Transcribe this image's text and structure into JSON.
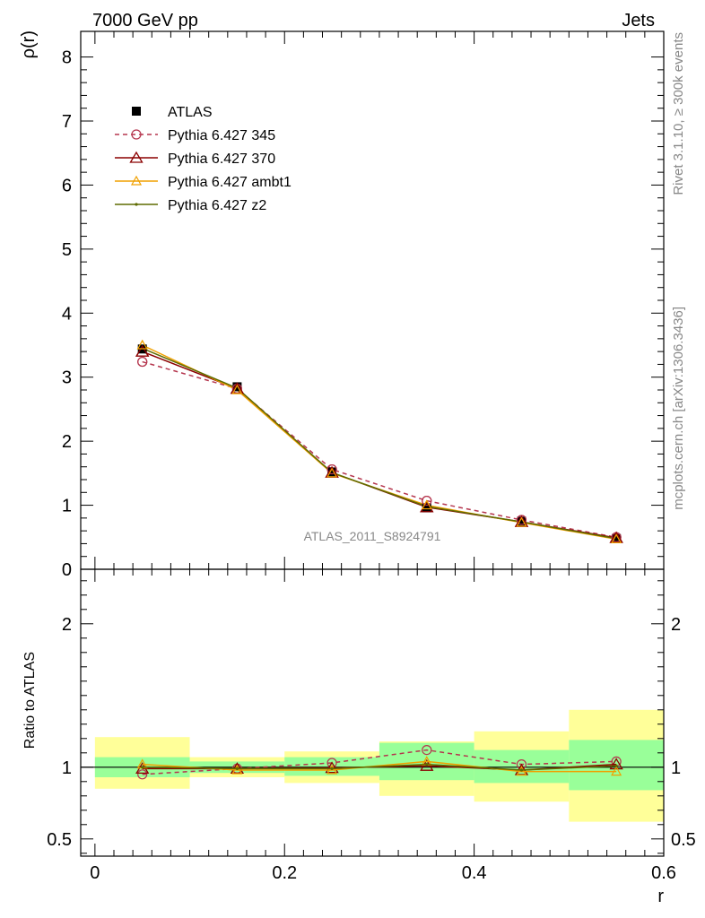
{
  "header": {
    "energy_label": "7000 GeV pp",
    "process_label": "Jets"
  },
  "side_labels": {
    "rivet": "Rivet 3.1.10, ≥ 300k events",
    "source": "mcplots.cern.ch [arXiv:1306.3436]"
  },
  "chart_data": {
    "type": "line",
    "analysis_label": "ATLAS_2011_S8924791",
    "xlabel": "r",
    "xlim": [
      -0.015,
      0.6
    ],
    "x_ticks": [
      {
        "value": 0,
        "label": "0"
      },
      {
        "value": 0.2,
        "label": "0.2"
      },
      {
        "value": 0.4,
        "label": "0.4"
      },
      {
        "value": 0.6,
        "label": "0.6"
      }
    ],
    "bin_edges": [
      0,
      0.1,
      0.2,
      0.3,
      0.4,
      0.5,
      0.6
    ],
    "x": [
      0.05,
      0.15,
      0.25,
      0.35,
      0.45,
      0.55
    ],
    "main": {
      "ylabel": "ρ(r)",
      "ylim": [
        0,
        8.4
      ],
      "y_ticks": [
        {
          "value": 0,
          "label": "0"
        },
        {
          "value": 1,
          "label": "1"
        },
        {
          "value": 2,
          "label": "2"
        },
        {
          "value": 3,
          "label": "3"
        },
        {
          "value": 4,
          "label": "4"
        },
        {
          "value": 5,
          "label": "5"
        },
        {
          "value": 6,
          "label": "6"
        },
        {
          "value": 7,
          "label": "7"
        },
        {
          "value": 8,
          "label": "8"
        }
      ],
      "data": {
        "name": "ATLAS",
        "values": [
          3.44,
          2.85,
          1.52,
          0.96,
          0.75,
          0.48
        ],
        "errors": [
          0.05,
          0.04,
          0.03,
          0.02,
          0.02,
          0.02
        ]
      },
      "series": [
        {
          "name": "Pythia 6.427 345",
          "color": "#b5364e",
          "dash": "5,4",
          "marker": "circle",
          "values": [
            3.24,
            2.82,
            1.56,
            1.07,
            0.77,
            0.5
          ]
        },
        {
          "name": "Pythia 6.427 370",
          "color": "#8b0000",
          "dash": "",
          "marker": "triangle-large",
          "values": [
            3.4,
            2.82,
            1.51,
            0.97,
            0.74,
            0.49
          ]
        },
        {
          "name": "Pythia 6.427 ambt1",
          "color": "#f0a000",
          "dash": "",
          "marker": "triangle",
          "values": [
            3.5,
            2.8,
            1.5,
            1.0,
            0.73,
            0.47
          ]
        },
        {
          "name": "Pythia 6.427 z2",
          "color": "#5e6b00",
          "dash": "",
          "marker": "dot",
          "values": [
            3.45,
            2.83,
            1.51,
            0.98,
            0.74,
            0.48
          ]
        }
      ]
    },
    "ratio": {
      "ylabel": "Ratio to ATLAS",
      "ylim": [
        0.38,
        2.38
      ],
      "y_ticks": [
        {
          "value": 0.5,
          "label": "0.5"
        },
        {
          "value": 1,
          "label": "1"
        },
        {
          "value": 2,
          "label": "2"
        }
      ],
      "band_outer": [
        [
          0.85,
          1.21
        ],
        [
          0.93,
          1.07
        ],
        [
          0.89,
          1.11
        ],
        [
          0.8,
          1.18
        ],
        [
          0.76,
          1.25
        ],
        [
          0.62,
          1.4
        ]
      ],
      "band_inner": [
        [
          0.93,
          1.07
        ],
        [
          0.96,
          1.04
        ],
        [
          0.94,
          1.07
        ],
        [
          0.91,
          1.17
        ],
        [
          0.89,
          1.12
        ],
        [
          0.84,
          1.19
        ]
      ],
      "series": [
        {
          "name": "Pythia 6.427 345",
          "values": [
            0.95,
            0.99,
            1.03,
            1.12,
            1.02,
            1.04
          ]
        },
        {
          "name": "Pythia 6.427 370",
          "values": [
            0.99,
            0.99,
            0.995,
            1.01,
            0.98,
            1.02
          ]
        },
        {
          "name": "Pythia 6.427 ambt1",
          "values": [
            1.02,
            0.98,
            0.98,
            1.04,
            0.97,
            0.97
          ]
        },
        {
          "name": "Pythia 6.427 z2",
          "values": [
            1.0,
            0.99,
            0.99,
            1.02,
            0.98,
            1.01
          ]
        }
      ]
    },
    "colors": {
      "band_outer": "#ffff99",
      "band_inner": "#99ff99",
      "data": "#000000"
    }
  }
}
